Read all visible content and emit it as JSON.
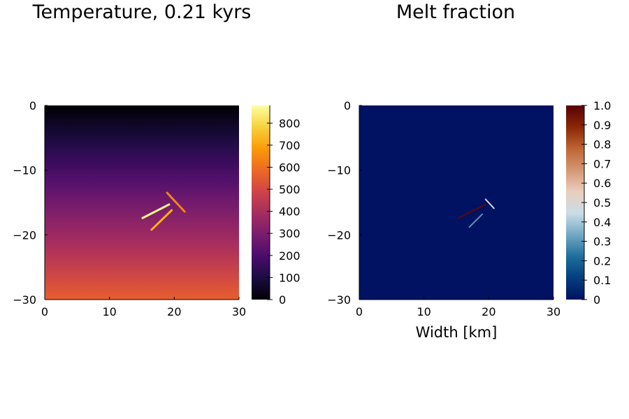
{
  "chart_data": [
    {
      "type": "heatmap",
      "title": "Temperature, 0.21 kyrs",
      "xlabel": "",
      "ylabel": "",
      "xlim": [
        0,
        30
      ],
      "ylim": [
        -30,
        0
      ],
      "xticks": [
        0,
        10,
        20,
        30
      ],
      "yticks": [
        0,
        -10,
        -20,
        -30
      ],
      "grid": false,
      "colormap": "inferno",
      "colorbar": {
        "limits": [
          0,
          880
        ],
        "ticks": [
          0,
          100,
          200,
          300,
          400,
          500,
          600,
          700,
          800
        ],
        "placement": "right"
      },
      "background_field": {
        "description_units": "temperature increases linearly with depth",
        "top_value": 0,
        "bottom_value": 560
      },
      "dikes": [
        {
          "x": [
            18.9,
            21.6
          ],
          "y": [
            -13.5,
            -16.4
          ],
          "value": 640
        },
        {
          "x": [
            15.1,
            19.2
          ],
          "y": [
            -17.4,
            -15.3
          ],
          "value": 860
        },
        {
          "x": [
            16.5,
            19.6
          ],
          "y": [
            -19.2,
            -16.2
          ],
          "value": 720
        }
      ]
    },
    {
      "type": "heatmap",
      "title": "Melt fraction",
      "xlabel": "Width [km]",
      "ylabel": "",
      "xlim": [
        0,
        30
      ],
      "ylim": [
        -30,
        0
      ],
      "xticks": [
        0,
        10,
        20,
        30
      ],
      "yticks": [
        0,
        -10,
        -20,
        -30
      ],
      "grid": false,
      "colormap": "vik",
      "colorbar": {
        "limits": [
          0,
          1.0
        ],
        "ticks": [
          0,
          0.1,
          0.2,
          0.3,
          0.4,
          0.5,
          0.6,
          0.7,
          0.8,
          0.9,
          1.0
        ],
        "placement": "right"
      },
      "background_field": {
        "top_value": 0,
        "bottom_value": 0
      },
      "dikes": [
        {
          "x": [
            19.5,
            20.8
          ],
          "y": [
            -14.5,
            -15.9
          ],
          "value": 0.45
        },
        {
          "x": [
            15.3,
            19.5
          ],
          "y": [
            -17.4,
            -15.3
          ],
          "value": 0.98
        },
        {
          "x": [
            17.0,
            19.0
          ],
          "y": [
            -18.8,
            -16.8
          ],
          "value": 0.3
        }
      ]
    }
  ]
}
